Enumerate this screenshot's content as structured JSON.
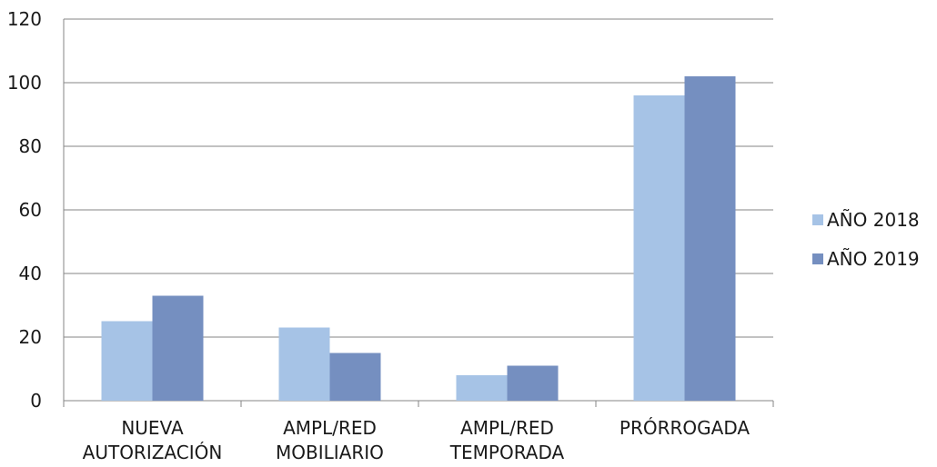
{
  "chart_data": {
    "type": "bar",
    "categories": [
      [
        "NUEVA",
        "AUTORIZACIÓN"
      ],
      [
        "AMPL/RED",
        "MOBILIARIO"
      ],
      [
        "AMPL/RED",
        "TEMPORADA"
      ],
      [
        "PRÓRROGADA"
      ]
    ],
    "series": [
      {
        "name": "AÑO 2018",
        "color": "#a6c3e6",
        "values": [
          25,
          23,
          8,
          96
        ]
      },
      {
        "name": "AÑO 2019",
        "color": "#758fc0",
        "values": [
          33,
          15,
          11,
          102
        ]
      }
    ],
    "ylim": [
      0,
      120
    ],
    "yticks": [
      0,
      20,
      40,
      60,
      80,
      100,
      120
    ],
    "grid": true,
    "legend": "right"
  }
}
